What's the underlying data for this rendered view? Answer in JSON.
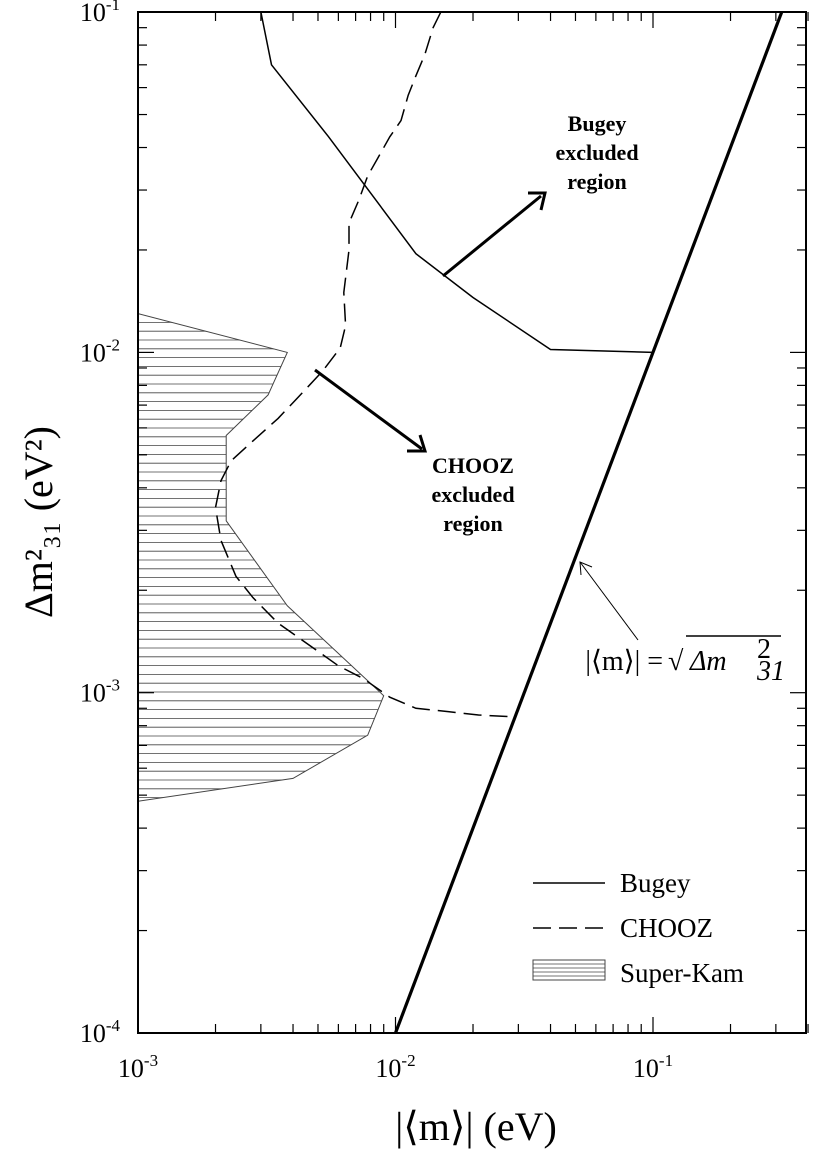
{
  "chart_data": {
    "type": "line",
    "x_scale": "log",
    "y_scale": "log",
    "xlim": [
      0.001,
      0.4
    ],
    "ylim": [
      0.0001,
      0.1
    ],
    "x_ticks": [
      {
        "value": 0.001,
        "base": "10",
        "exp": "-3"
      },
      {
        "value": 0.01,
        "base": "10",
        "exp": "-2"
      },
      {
        "value": 0.1,
        "base": "10",
        "exp": "-1"
      }
    ],
    "y_ticks": [
      {
        "value": 0.0001,
        "base": "10",
        "exp": "-4"
      },
      {
        "value": 0.001,
        "base": "10",
        "exp": "-3"
      },
      {
        "value": 0.01,
        "base": "10",
        "exp": "-2"
      },
      {
        "value": 0.1,
        "base": "10",
        "exp": "-1"
      }
    ],
    "xlabel": "|⟨m⟩| (eV)",
    "ylabel": "Δm²₃₁ (eV²)",
    "grid": false,
    "legend_position": "bottom-right",
    "series": [
      {
        "name": "Bugey",
        "style": "solid",
        "x": [
          0.003,
          0.0033,
          0.0055,
          0.012,
          0.02,
          0.04,
          0.1
        ],
        "y": [
          0.1,
          0.07,
          0.043,
          0.0195,
          0.0145,
          0.0102,
          0.01
        ]
      },
      {
        "name": "CHOOZ",
        "style": "dashed",
        "x": [
          0.015,
          0.014,
          0.013,
          0.012,
          0.0112,
          0.0105,
          0.0095,
          0.0085,
          0.0078,
          0.0072,
          0.0066,
          0.0066,
          0.0063,
          0.0064,
          0.0061,
          0.0052,
          0.0042,
          0.0035,
          0.0028,
          0.0023,
          0.0021,
          0.002,
          0.0021,
          0.0024,
          0.0028,
          0.0035,
          0.0045,
          0.006,
          0.0075,
          0.0095,
          0.012,
          0.016,
          0.021,
          0.028
        ],
        "y": [
          0.1,
          0.09,
          0.075,
          0.065,
          0.057,
          0.048,
          0.043,
          0.037,
          0.033,
          0.028,
          0.024,
          0.02,
          0.015,
          0.012,
          0.0103,
          0.0088,
          0.0074,
          0.0064,
          0.0055,
          0.0048,
          0.0042,
          0.0035,
          0.0028,
          0.0022,
          0.0019,
          0.0016,
          0.0014,
          0.0012,
          0.0011,
          0.00097,
          0.0009,
          0.00088,
          0.00086,
          0.00085
        ]
      },
      {
        "name": "|⟨m⟩| = √(Δm²₃₁)",
        "style": "thick",
        "x": [
          0.01,
          0.3162
        ],
        "y": [
          0.0001,
          0.1
        ]
      }
    ],
    "regions": [
      {
        "name": "Super-Kam",
        "style": "hatched",
        "x": [
          0.001,
          0.0038,
          0.0032,
          0.0022,
          0.0022,
          0.0038,
          0.009,
          0.0078,
          0.004,
          0.001
        ],
        "y": [
          0.013,
          0.01,
          0.0075,
          0.0057,
          0.0032,
          0.0018,
          0.00098,
          0.00075,
          0.00056,
          0.00048
        ]
      }
    ],
    "legend": [
      "Bugey",
      "CHOOZ",
      "Super-Kam"
    ],
    "annotations": {
      "bugey": [
        "Bugey",
        "excluded",
        "region"
      ],
      "chooz": [
        "CHOOZ",
        "excluded",
        "region"
      ],
      "formula": {
        "lhs": "|⟨m⟩| =",
        "rad": "√",
        "rhs": "Δm",
        "sup": "2",
        "sub": "31"
      }
    }
  }
}
